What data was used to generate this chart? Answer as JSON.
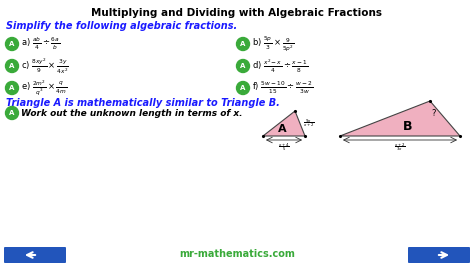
{
  "title": "Multiplying and Dividing with Algebraic Fractions",
  "bg_color": "#ffffff",
  "title_color": "#000000",
  "simplify_text": "Simplify the following algebraic fractions.",
  "simplify_color": "#1a1aff",
  "circle_color": "#3aaa3a",
  "circle_text_color": "#ffffff",
  "problems_left": [
    {
      "label": "a) ",
      "expr": "$\\frac{ab}{4} \\div \\frac{6a}{b}$"
    },
    {
      "label": "c) ",
      "expr": "$\\frac{8xy^2}{9} \\times \\frac{3y}{4x^2}$"
    },
    {
      "label": "e) ",
      "expr": "$\\frac{2m^2}{q^3} \\times \\frac{q}{4m}$"
    }
  ],
  "problems_right": [
    {
      "label": "b) ",
      "expr": "$\\frac{5p}{3} \\times \\frac{9}{5p^2}$"
    },
    {
      "label": "d) ",
      "expr": "$\\frac{x^2-x}{4} \\div \\frac{x-1}{8}$"
    },
    {
      "label": "f) ",
      "expr": "$\\frac{5w-10}{15} \\div \\frac{w-2}{3w}$"
    }
  ],
  "triangle_text": "Triangle A is mathematically similar to Triangle B.",
  "triangle_color": "#1a1aff",
  "work_text": "Work out the unknown length in terms of x.",
  "tri_fill": "#f0b0c0",
  "tri_edge": "#444444",
  "website": "mr-mathematics.com",
  "website_color": "#3aaa3a",
  "arrow_color": "#2255bb",
  "label_A_side": "$\\frac{9x}{x+2}$",
  "label_A_base": "$\\frac{x+4}{5}$",
  "label_B_hyp": "$?$",
  "label_B_base": "$\\frac{x+2}{3x}$"
}
